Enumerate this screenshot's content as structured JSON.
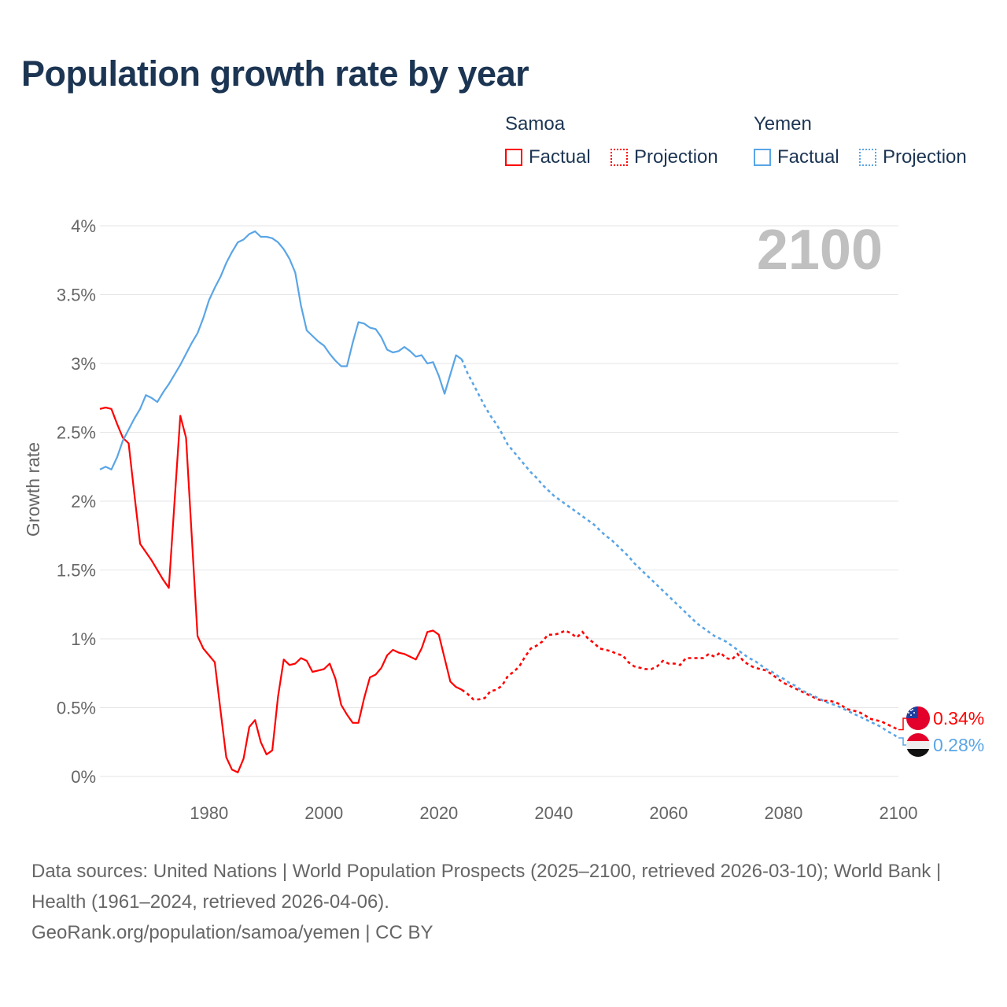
{
  "title": "Population growth rate by year",
  "legend": {
    "groups": [
      {
        "name": "Samoa",
        "factual": "Factual",
        "projection": "Projection",
        "color": "#ff0000"
      },
      {
        "name": "Yemen",
        "factual": "Factual",
        "projection": "Projection",
        "color": "#5aa5e6"
      }
    ]
  },
  "year_overlay": "2100",
  "footer": {
    "sources": "Data sources: United Nations | World Population Prospects (2025–2100, retrieved 2026-03-10); World Bank | Health (1961–2024, retrieved 2026-04-06).",
    "credit": "GeoRank.org/population/samoa/yemen | CC BY"
  },
  "chart_data": {
    "type": "line",
    "title": "Population growth rate by year",
    "xlabel": "",
    "ylabel": "Growth rate",
    "xlim": [
      1961,
      2100
    ],
    "ylim": [
      0,
      4
    ],
    "x_ticks": [
      1980,
      2000,
      2020,
      2040,
      2060,
      2080,
      2100
    ],
    "y_ticks": [
      0,
      0.5,
      1,
      1.5,
      2,
      2.5,
      3,
      3.5,
      4
    ],
    "y_tick_labels": [
      "0%",
      "0.5%",
      "1%",
      "1.5%",
      "2%",
      "2.5%",
      "3%",
      "3.5%",
      "4%"
    ],
    "x_tick_labels": [
      "1980",
      "2000",
      "2020",
      "2040",
      "2060",
      "2080",
      "2100"
    ],
    "grid": true,
    "legend_position": "top-right",
    "series": [
      {
        "name": "Samoa",
        "color": "#ff0000",
        "end_label": "0.34%",
        "factual": {
          "start_year": 1961,
          "values": [
            2.67,
            2.68,
            2.67,
            2.56,
            2.46,
            2.42,
            2.05,
            1.69,
            1.63,
            1.57,
            1.5,
            1.43,
            1.37,
            2.0,
            2.62,
            2.46,
            1.74,
            1.02,
            0.93,
            0.88,
            0.83,
            0.48,
            0.14,
            0.05,
            0.03,
            0.13,
            0.36,
            0.41,
            0.25,
            0.16,
            0.19,
            0.58,
            0.85,
            0.81,
            0.82,
            0.86,
            0.84,
            0.76,
            0.77,
            0.78,
            0.82,
            0.71,
            0.52,
            0.45,
            0.39,
            0.39,
            0.57,
            0.72,
            0.74,
            0.79,
            0.88,
            0.92,
            0.9,
            0.89,
            0.87,
            0.85,
            0.93,
            1.05,
            1.06,
            1.03,
            0.86,
            0.69,
            0.65,
            0.63
          ]
        },
        "projection": {
          "start_year": 2024,
          "values": [
            0.63,
            0.6,
            0.56,
            0.56,
            0.57,
            0.62,
            0.63,
            0.66,
            0.73,
            0.76,
            0.8,
            0.87,
            0.93,
            0.95,
            0.98,
            1.03,
            1.03,
            1.04,
            1.06,
            1.04,
            1.01,
            1.05,
            1.0,
            0.97,
            0.93,
            0.92,
            0.91,
            0.89,
            0.88,
            0.83,
            0.8,
            0.79,
            0.78,
            0.78,
            0.8,
            0.84,
            0.82,
            0.82,
            0.81,
            0.86,
            0.86,
            0.86,
            0.86,
            0.89,
            0.87,
            0.9,
            0.86,
            0.85,
            0.89,
            0.84,
            0.81,
            0.79,
            0.78,
            0.77,
            0.74,
            0.71,
            0.68,
            0.66,
            0.64,
            0.62,
            0.6,
            0.58,
            0.56,
            0.55,
            0.55,
            0.54,
            0.52,
            0.49,
            0.48,
            0.47,
            0.45,
            0.42,
            0.41,
            0.4,
            0.38,
            0.36,
            0.34
          ]
        }
      },
      {
        "name": "Yemen",
        "color": "#5aa5e6",
        "end_label": "0.28%",
        "factual": {
          "start_year": 1961,
          "values": [
            2.23,
            2.25,
            2.23,
            2.32,
            2.44,
            2.52,
            2.6,
            2.67,
            2.77,
            2.75,
            2.72,
            2.79,
            2.85,
            2.92,
            2.99,
            3.07,
            3.15,
            3.22,
            3.33,
            3.46,
            3.55,
            3.63,
            3.73,
            3.81,
            3.88,
            3.9,
            3.94,
            3.96,
            3.92,
            3.92,
            3.91,
            3.88,
            3.83,
            3.76,
            3.66,
            3.42,
            3.24,
            3.2,
            3.16,
            3.13,
            3.07,
            3.02,
            2.98,
            2.98,
            3.15,
            3.3,
            3.29,
            3.26,
            3.25,
            3.19,
            3.1,
            3.08,
            3.09,
            3.12,
            3.09,
            3.05,
            3.06,
            3.0,
            3.01,
            2.91,
            2.78,
            2.92,
            3.06,
            3.03
          ]
        },
        "projection": {
          "start_year": 2024,
          "values": [
            3.03,
            2.93,
            2.85,
            2.77,
            2.69,
            2.62,
            2.56,
            2.49,
            2.41,
            2.36,
            2.31,
            2.26,
            2.21,
            2.17,
            2.12,
            2.08,
            2.04,
            2.01,
            1.98,
            1.95,
            1.92,
            1.89,
            1.86,
            1.83,
            1.79,
            1.75,
            1.72,
            1.68,
            1.64,
            1.6,
            1.55,
            1.51,
            1.47,
            1.43,
            1.39,
            1.35,
            1.31,
            1.27,
            1.23,
            1.19,
            1.15,
            1.11,
            1.08,
            1.05,
            1.02,
            1.0,
            0.98,
            0.95,
            0.92,
            0.89,
            0.86,
            0.84,
            0.81,
            0.78,
            0.76,
            0.73,
            0.71,
            0.68,
            0.66,
            0.63,
            0.61,
            0.59,
            0.57,
            0.55,
            0.53,
            0.52,
            0.5,
            0.48,
            0.46,
            0.44,
            0.42,
            0.4,
            0.38,
            0.36,
            0.33,
            0.31,
            0.28
          ]
        }
      }
    ]
  }
}
